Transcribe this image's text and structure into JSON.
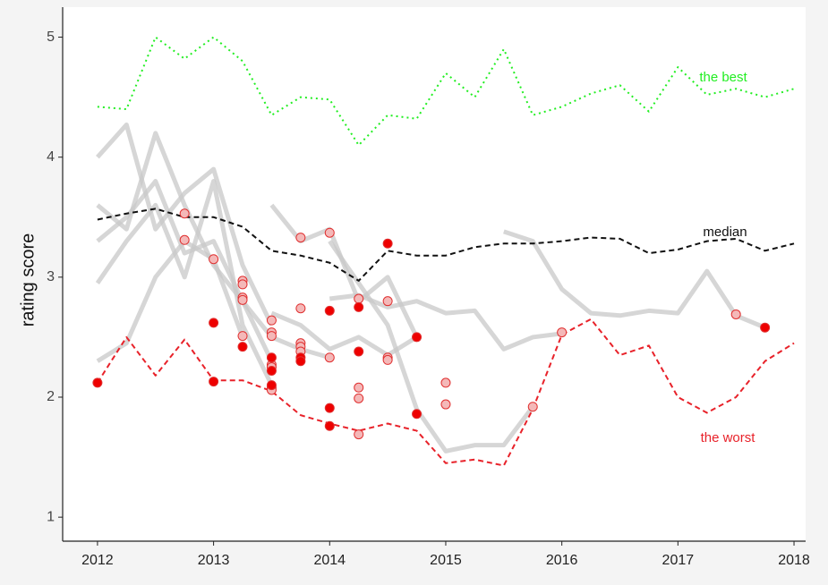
{
  "chart_data": {
    "type": "line",
    "y_label": "rating score",
    "xlim": [
      2011.7,
      2018.1
    ],
    "ylim": [
      0.8,
      5.25
    ],
    "xticks": [
      2012,
      2013,
      2014,
      2015,
      2016,
      2017,
      2018
    ],
    "yticks": [
      1,
      2,
      3,
      4,
      5
    ],
    "series": [
      {
        "color": "#c8c8c8",
        "style": "gray",
        "x": [
          2012,
          2012.25,
          2012.5,
          2012.75,
          2013,
          2013.25,
          2013.5
        ],
        "values": [
          4.0,
          4.27,
          3.4,
          3.7,
          3.9,
          3.1,
          2.6
        ]
      },
      {
        "color": "#c8c8c8",
        "style": "gray",
        "x": [
          2012,
          2012.25,
          2012.5,
          2012.75,
          2013,
          2013.25,
          2013.5
        ],
        "values": [
          3.6,
          3.4,
          4.2,
          3.6,
          3.1,
          2.8,
          2.3
        ]
      },
      {
        "color": "#c8c8c8",
        "style": "gray",
        "x": [
          2012,
          2012.25,
          2012.5,
          2012.75,
          2013,
          2013.25,
          2013.5
        ],
        "values": [
          2.95,
          3.3,
          3.6,
          3.0,
          3.8,
          2.6,
          2.1
        ]
      },
      {
        "color": "#c8c8c8",
        "style": "gray",
        "x": [
          2012,
          2012.25,
          2012.5,
          2012.75,
          2013,
          2013.25
        ],
        "values": [
          2.3,
          2.45,
          3.0,
          3.3,
          3.15,
          2.5
        ]
      },
      {
        "color": "#c8c8c8",
        "style": "gray",
        "x": [
          2012,
          2012.25,
          2012.5,
          2012.75,
          2013,
          2013.25,
          2013.5,
          2013.75,
          2014
        ],
        "values": [
          3.3,
          3.5,
          3.8,
          3.2,
          3.3,
          2.8,
          2.5,
          2.4,
          2.33
        ]
      },
      {
        "color": "#c8c8c8",
        "style": "gray",
        "x": [
          2013.5,
          2013.75,
          2014,
          2014.25,
          2014.5,
          2014.75
        ],
        "values": [
          3.6,
          3.3,
          3.4,
          2.8,
          3.0,
          2.5
        ]
      },
      {
        "color": "#c8c8c8",
        "style": "gray",
        "x": [
          2014,
          2014.25,
          2014.5,
          2014.75,
          2015,
          2015.25,
          2015.5,
          2015.75,
          2016
        ],
        "values": [
          2.82,
          2.85,
          2.75,
          2.8,
          2.7,
          2.72,
          2.4,
          2.5,
          2.53
        ]
      },
      {
        "color": "#c8c8c8",
        "style": "gray",
        "x": [
          2015.5,
          2015.75,
          2016,
          2016.25,
          2016.5,
          2016.75,
          2017,
          2017.25,
          2017.5,
          2017.75
        ],
        "values": [
          3.38,
          3.3,
          2.9,
          2.7,
          2.68,
          2.72,
          2.7,
          3.05,
          2.68,
          2.58
        ]
      },
      {
        "color": "#c8c8c8",
        "style": "gray",
        "x": [
          2014,
          2014.25,
          2014.5,
          2014.75,
          2015,
          2015.25,
          2015.5,
          2015.75
        ],
        "values": [
          3.3,
          2.95,
          2.6,
          1.9,
          1.55,
          1.6,
          1.6,
          1.92
        ]
      },
      {
        "color": "#c8c8c8",
        "style": "gray",
        "x": [
          2013.5,
          2013.75,
          2014,
          2014.25,
          2014.5,
          2014.75
        ],
        "values": [
          2.7,
          2.6,
          2.4,
          2.5,
          2.35,
          2.5
        ]
      },
      {
        "name": "the best",
        "color": "#22ee22",
        "style": "dotted",
        "x": [
          2012,
          2012.25,
          2012.5,
          2012.75,
          2013,
          2013.25,
          2013.5,
          2013.75,
          2014,
          2014.25,
          2014.5,
          2014.75,
          2015,
          2015.25,
          2015.5,
          2015.75,
          2016,
          2016.25,
          2016.5,
          2016.75,
          2017,
          2017.25,
          2017.5,
          2017.75,
          2018
        ],
        "values": [
          4.42,
          4.4,
          5.0,
          4.82,
          5.0,
          4.8,
          4.35,
          4.5,
          4.48,
          4.1,
          4.35,
          4.32,
          4.7,
          4.5,
          4.9,
          4.35,
          4.42,
          4.53,
          4.6,
          4.38,
          4.75,
          4.52,
          4.57,
          4.5,
          4.57
        ]
      },
      {
        "name": "median",
        "color": "#111111",
        "style": "dashed",
        "x": [
          2012,
          2012.25,
          2012.5,
          2012.75,
          2013,
          2013.25,
          2013.5,
          2013.75,
          2014,
          2014.25,
          2014.5,
          2014.75,
          2015,
          2015.25,
          2015.5,
          2015.75,
          2016,
          2016.25,
          2016.5,
          2016.75,
          2017,
          2017.25,
          2017.5,
          2017.75,
          2018
        ],
        "values": [
          3.48,
          3.53,
          3.57,
          3.5,
          3.5,
          3.42,
          3.22,
          3.18,
          3.12,
          2.97,
          3.22,
          3.18,
          3.18,
          3.25,
          3.28,
          3.28,
          3.3,
          3.33,
          3.32,
          3.2,
          3.23,
          3.3,
          3.32,
          3.22,
          3.28
        ]
      },
      {
        "name": "the worst",
        "color": "#e8222a",
        "style": "dashed",
        "x": [
          2012,
          2012.25,
          2012.5,
          2012.75,
          2013,
          2013.25,
          2013.5,
          2013.75,
          2014,
          2014.25,
          2014.5,
          2014.75,
          2015,
          2015.25,
          2015.5,
          2015.75,
          2016,
          2016.25,
          2016.5,
          2016.75,
          2017,
          2017.25,
          2017.5,
          2017.75,
          2018
        ],
        "values": [
          2.12,
          2.5,
          2.18,
          2.48,
          2.14,
          2.14,
          2.05,
          1.85,
          1.78,
          1.72,
          1.78,
          1.72,
          1.45,
          1.48,
          1.43,
          1.9,
          2.52,
          2.65,
          2.35,
          2.43,
          2.0,
          1.87,
          2.0,
          2.3,
          2.45
        ]
      },
      {
        "color": "#f4b8b8",
        "style": "point",
        "x": [
          2012.75,
          2012.75,
          2013,
          2013.25,
          2013.25,
          2013.25,
          2013.25,
          2013.25,
          2013.5,
          2013.5,
          2013.5,
          2013.5,
          2013.5,
          2013.5,
          2013.5,
          2013.75,
          2013.75,
          2013.75,
          2013.75,
          2013.75,
          2014,
          2014,
          2014.25,
          2014.25,
          2014.25,
          2014.25,
          2014.5,
          2014.5,
          2014.5,
          2015,
          2015,
          2015.75,
          2016,
          2017.5
        ],
        "values": [
          3.53,
          3.31,
          3.15,
          2.97,
          2.94,
          2.83,
          2.81,
          2.51,
          2.64,
          2.54,
          2.51,
          2.27,
          2.25,
          2.08,
          2.06,
          3.33,
          2.74,
          2.45,
          2.42,
          2.38,
          3.37,
          2.33,
          2.82,
          2.08,
          1.99,
          1.69,
          2.8,
          2.33,
          2.31,
          2.12,
          1.94,
          1.92,
          2.54,
          2.69
        ]
      },
      {
        "color": "#ee0000",
        "style": "point",
        "x": [
          2012,
          2013,
          2013,
          2013.25,
          2013.5,
          2013.5,
          2013.5,
          2013.75,
          2013.75,
          2014,
          2014,
          2014,
          2014.25,
          2014.25,
          2014.5,
          2014.75,
          2014.75,
          2017.75
        ],
        "values": [
          2.12,
          2.62,
          2.13,
          2.42,
          2.33,
          2.22,
          2.1,
          2.33,
          2.3,
          2.72,
          1.91,
          1.76,
          2.75,
          2.38,
          3.28,
          2.5,
          1.86,
          2.58
        ]
      }
    ]
  }
}
